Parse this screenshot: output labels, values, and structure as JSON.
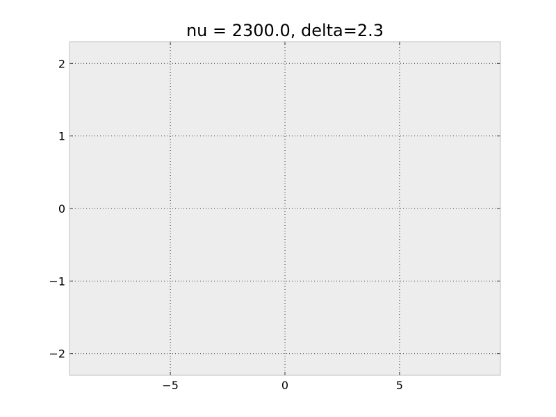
{
  "chart_data": {
    "type": "line",
    "title": "nu = 2300.0, delta=2.3",
    "xlabel": "",
    "ylabel": "",
    "xlim": [
      -9.4,
      9.4
    ],
    "ylim": [
      -2.3,
      2.3
    ],
    "x_ticks": [
      -5,
      0,
      5
    ],
    "x_tick_labels": [
      "−5",
      "0",
      "5"
    ],
    "y_ticks": [
      2,
      1,
      0,
      -1,
      -2
    ],
    "y_tick_labels": [
      "2",
      "1",
      "0",
      "−1",
      "−2"
    ],
    "series": [],
    "grid": true,
    "legend": "none",
    "colors": {
      "plot_background": "#ededed",
      "frame": "#bfbfbf",
      "grid": "#333333"
    }
  }
}
